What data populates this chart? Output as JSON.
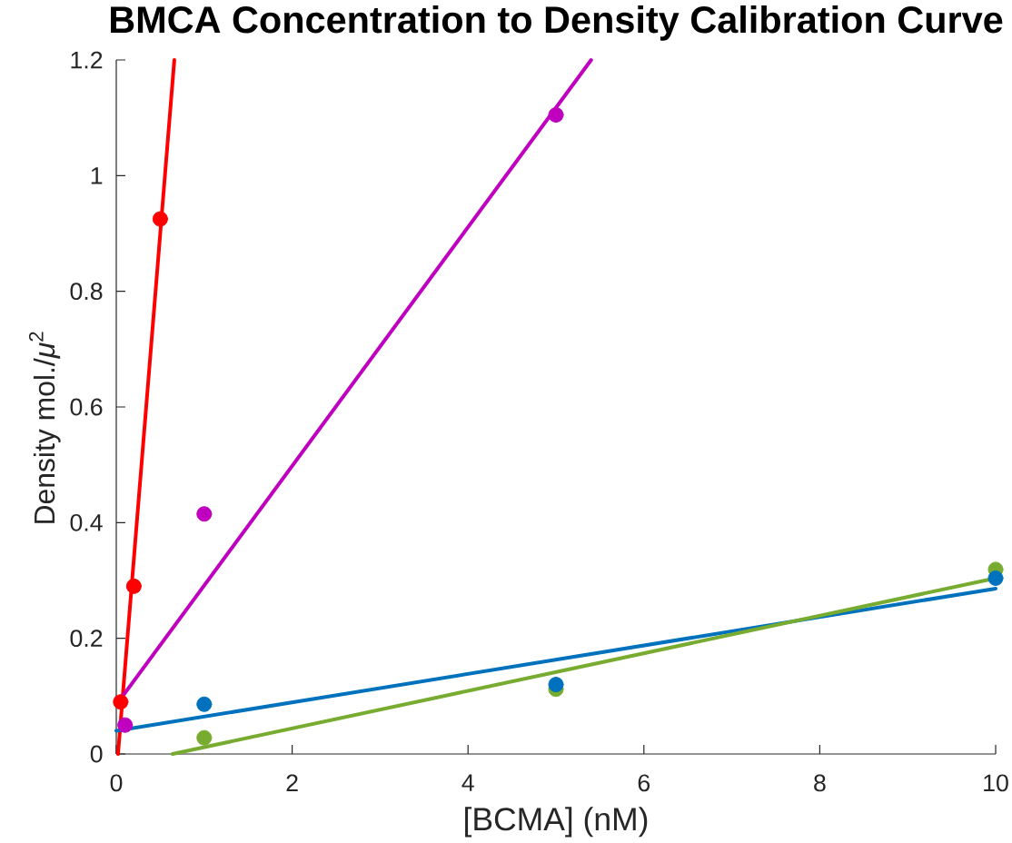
{
  "chart_data": {
    "type": "scatter",
    "title": "BMCA Concentration to Density Calibration Curve",
    "xlabel": "[BCMA] (nM)",
    "ylabel": "Density mol./*μ*$^{2}$",
    "xlim": [
      0,
      10
    ],
    "ylim": [
      0,
      1.2
    ],
    "xticks": [
      0,
      2,
      4,
      6,
      8,
      10
    ],
    "yticks": [
      0,
      0.2,
      0.4,
      0.6,
      0.8,
      1,
      1.2
    ],
    "series": [
      {
        "type": "line",
        "color": "#ff0000",
        "line_style": "solid",
        "x": [
          0.02,
          0.66
        ],
        "values": [
          0,
          1.2
        ]
      },
      {
        "type": "line",
        "color": "#bf00bf",
        "line_style": "solid",
        "x": [
          0,
          5.4
        ],
        "values": [
          0.085,
          1.2
        ]
      },
      {
        "type": "line",
        "color": "#0072bd",
        "line_style": "solid",
        "x": [
          0,
          10
        ],
        "values": [
          0.04,
          0.286
        ]
      },
      {
        "type": "line",
        "color": "#77ac30",
        "line_style": "solid",
        "x": [
          0.64,
          10
        ],
        "values": [
          0,
          0.304
        ]
      },
      {
        "color": "#ff0000",
        "marker": "circle",
        "x": [
          0.05,
          0.2,
          0.5
        ],
        "values": [
          0.09,
          0.29,
          0.925
        ]
      },
      {
        "color": "#bf00bf",
        "marker": "circle",
        "x": [
          0.1,
          1,
          5
        ],
        "values": [
          0.05,
          0.415,
          1.105
        ]
      },
      {
        "color": "#77ac30",
        "marker": "circle",
        "x": [
          1,
          5,
          10
        ],
        "values": [
          0.028,
          0.112,
          0.319
        ]
      },
      {
        "color": "#0072bd",
        "marker": "circle",
        "x": [
          1,
          5,
          10
        ],
        "values": [
          0.086,
          0.12,
          0.304
        ]
      }
    ]
  }
}
